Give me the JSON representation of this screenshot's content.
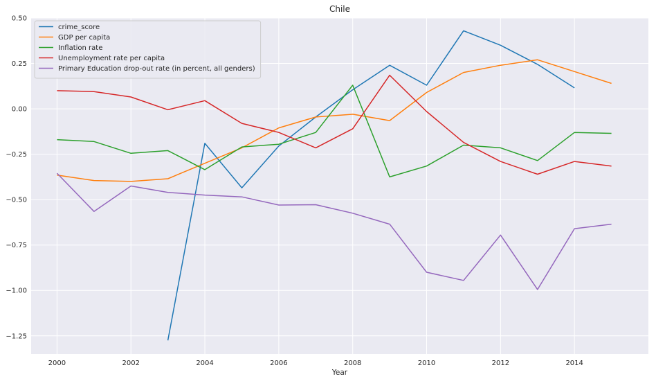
{
  "chart_data": {
    "type": "line",
    "title": "Chile",
    "xlabel": "Year",
    "ylabel": "",
    "xlim": [
      1999.3,
      2016.0
    ],
    "ylim": [
      -1.35,
      0.5
    ],
    "x_ticks": [
      2000,
      2002,
      2004,
      2006,
      2008,
      2010,
      2012,
      2014
    ],
    "y_ticks": [
      0.5,
      0.25,
      0.0,
      -0.25,
      -0.5,
      -0.75,
      -1.0,
      -1.25
    ],
    "x_tick_labels": [
      "2000",
      "2002",
      "2004",
      "2006",
      "2008",
      "2010",
      "2012",
      "2014"
    ],
    "y_tick_labels": [
      "0.50",
      "0.25",
      "0.00",
      "−0.25",
      "−0.50",
      "−0.75",
      "−1.00",
      "−1.25"
    ],
    "grid": true,
    "legend_position": "top-left",
    "background": "#eaeaf2",
    "series": [
      {
        "name": "crime_score",
        "color": "#1f77b4",
        "points": [
          [
            2003,
            -1.275
          ],
          [
            2004,
            -0.19
          ],
          [
            2005,
            -0.435
          ],
          [
            2006,
            -0.205
          ],
          [
            2007,
            -0.045
          ],
          [
            2008,
            0.105
          ],
          [
            2009,
            0.24
          ],
          [
            2010,
            0.13
          ],
          [
            2011,
            0.43
          ],
          [
            2012,
            0.35
          ],
          [
            2013,
            0.245
          ],
          [
            2014,
            0.115
          ]
        ]
      },
      {
        "name": "GDP per capita",
        "color": "#ff7f0e",
        "points": [
          [
            2000,
            -0.365
          ],
          [
            2001,
            -0.395
          ],
          [
            2002,
            -0.4
          ],
          [
            2003,
            -0.385
          ],
          [
            2004,
            -0.3
          ],
          [
            2005,
            -0.215
          ],
          [
            2006,
            -0.105
          ],
          [
            2007,
            -0.045
          ],
          [
            2008,
            -0.03
          ],
          [
            2009,
            -0.065
          ],
          [
            2010,
            0.09
          ],
          [
            2011,
            0.2
          ],
          [
            2012,
            0.24
          ],
          [
            2013,
            0.27
          ],
          [
            2014,
            0.205
          ],
          [
            2015,
            0.14
          ]
        ]
      },
      {
        "name": "Inflation rate",
        "color": "#2ca02c",
        "points": [
          [
            2000,
            -0.17
          ],
          [
            2001,
            -0.18
          ],
          [
            2002,
            -0.245
          ],
          [
            2003,
            -0.23
          ],
          [
            2004,
            -0.335
          ],
          [
            2005,
            -0.21
          ],
          [
            2006,
            -0.195
          ],
          [
            2007,
            -0.13
          ],
          [
            2008,
            0.13
          ],
          [
            2009,
            -0.375
          ],
          [
            2010,
            -0.315
          ],
          [
            2011,
            -0.2
          ],
          [
            2012,
            -0.215
          ],
          [
            2013,
            -0.285
          ],
          [
            2014,
            -0.13
          ],
          [
            2015,
            -0.135
          ]
        ]
      },
      {
        "name": "Unemployment rate per capita",
        "color": "#d62728",
        "points": [
          [
            2000,
            0.1
          ],
          [
            2001,
            0.095
          ],
          [
            2002,
            0.065
          ],
          [
            2003,
            -0.005
          ],
          [
            2004,
            0.045
          ],
          [
            2005,
            -0.08
          ],
          [
            2006,
            -0.13
          ],
          [
            2007,
            -0.215
          ],
          [
            2008,
            -0.11
          ],
          [
            2009,
            0.185
          ],
          [
            2010,
            -0.015
          ],
          [
            2011,
            -0.185
          ],
          [
            2012,
            -0.29
          ],
          [
            2013,
            -0.36
          ],
          [
            2014,
            -0.29
          ],
          [
            2015,
            -0.315
          ]
        ]
      },
      {
        "name": "Primary Education drop-out rate (in percent, all genders)",
        "color": "#9467bd",
        "points": [
          [
            2000,
            -0.355
          ],
          [
            2001,
            -0.565
          ],
          [
            2002,
            -0.425
          ],
          [
            2003,
            -0.46
          ],
          [
            2004,
            -0.475
          ],
          [
            2005,
            -0.485
          ],
          [
            2006,
            -0.53
          ],
          [
            2007,
            -0.528
          ],
          [
            2008,
            -0.575
          ],
          [
            2009,
            -0.635
          ],
          [
            2010,
            -0.9
          ],
          [
            2011,
            -0.945
          ],
          [
            2012,
            -0.695
          ],
          [
            2013,
            -0.995
          ],
          [
            2014,
            -0.66
          ],
          [
            2015,
            -0.635
          ]
        ]
      }
    ]
  }
}
